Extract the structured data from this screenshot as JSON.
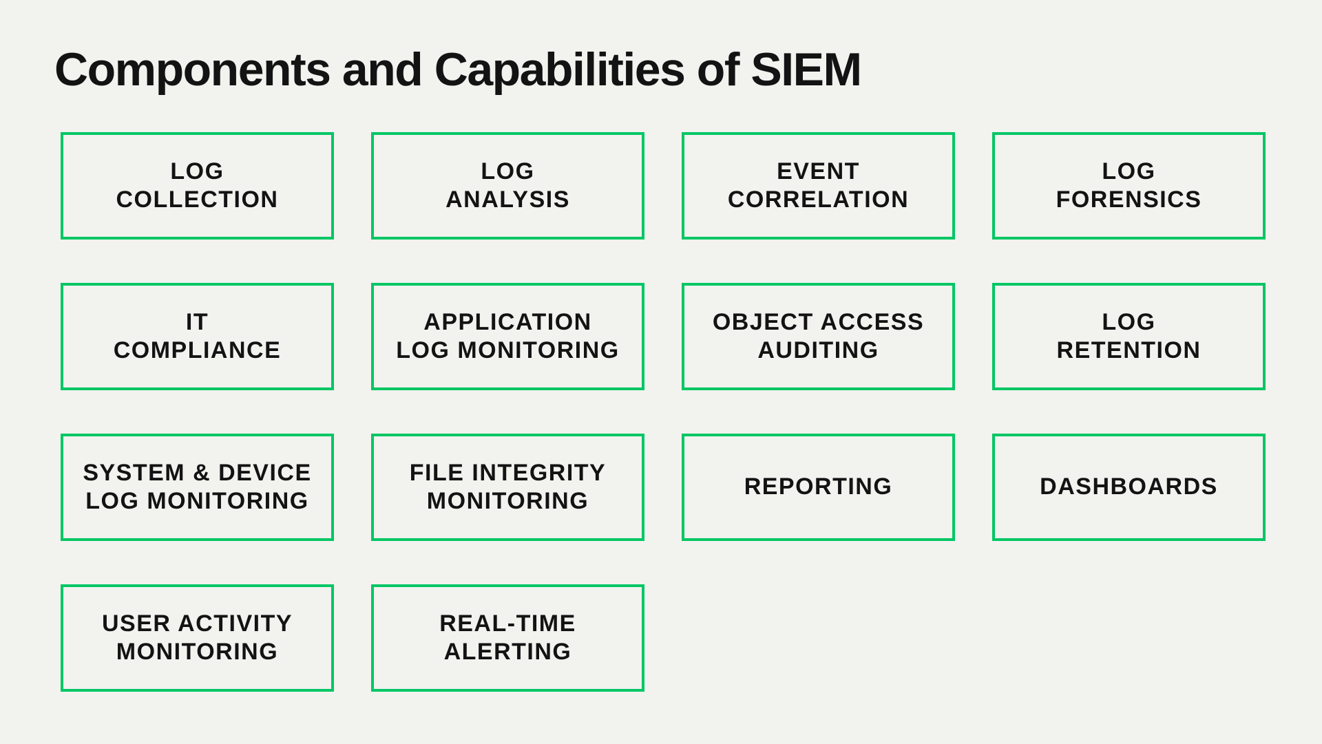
{
  "colors": {
    "background": "#F2F2EF",
    "accent_green": "#00C764",
    "text": "#131313"
  },
  "title": "Components and Capabilities of SIEM",
  "diagram": {
    "boxes": [
      {
        "label": "LOG\nCOLLECTION"
      },
      {
        "label": "LOG\nANALYSIS"
      },
      {
        "label": "EVENT\nCORRELATION"
      },
      {
        "label": "LOG\nFORENSICS"
      },
      {
        "label": "IT\nCOMPLIANCE"
      },
      {
        "label": "APPLICATION\nLOG MONITORING"
      },
      {
        "label": "OBJECT ACCESS\nAUDITING"
      },
      {
        "label": "LOG\nRETENTION"
      },
      {
        "label": "SYSTEM & DEVICE\nLOG MONITORING"
      },
      {
        "label": "FILE INTEGRITY\nMONITORING"
      },
      {
        "label": "REPORTING"
      },
      {
        "label": "DASHBOARDS"
      },
      {
        "label": "USER ACTIVITY\nMONITORING"
      },
      {
        "label": "REAL-TIME\nALERTING"
      }
    ]
  }
}
